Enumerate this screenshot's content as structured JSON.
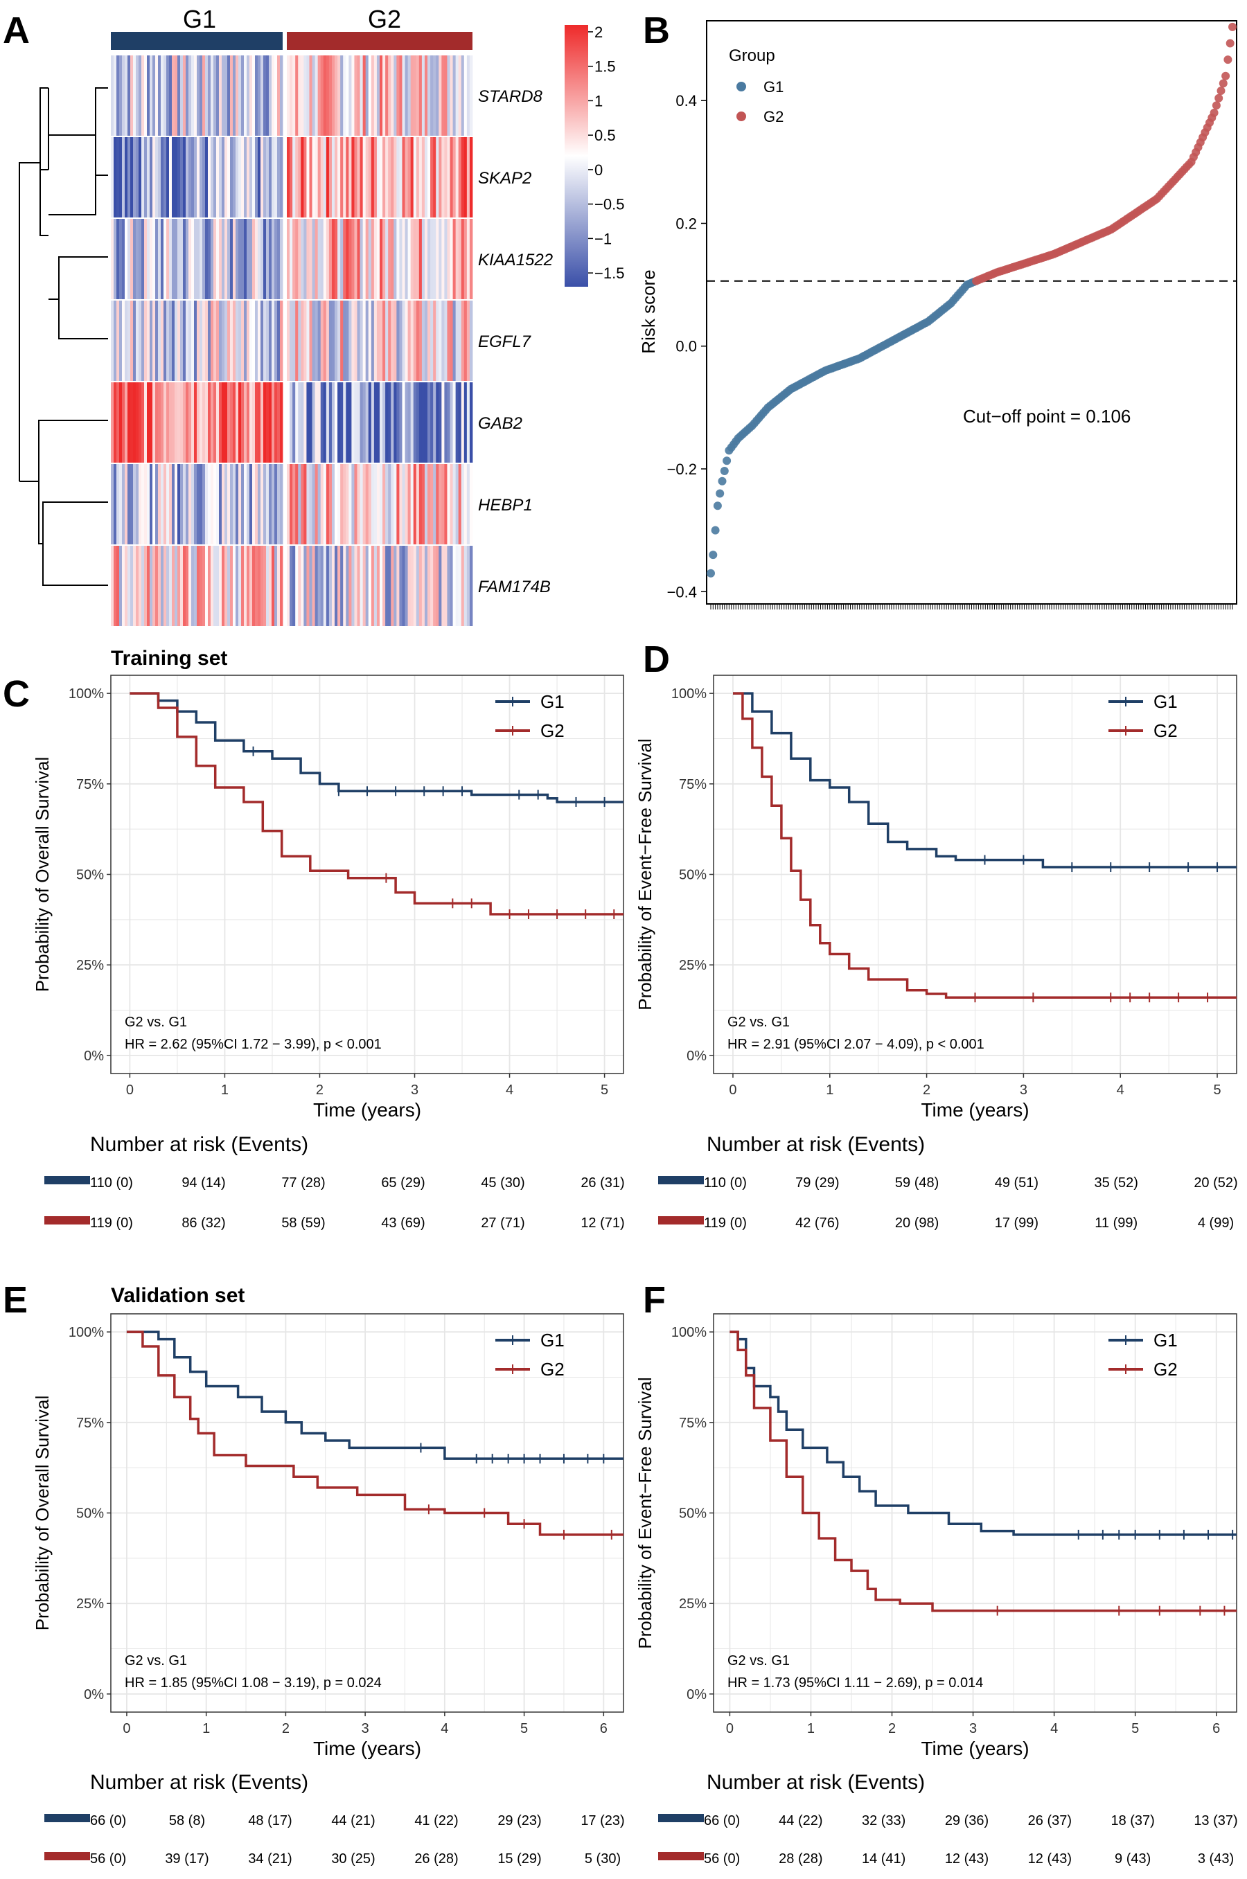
{
  "colors": {
    "g1": "#1f3f66",
    "g2": "#a32b2b",
    "g1_point": "#4a7aa0",
    "g2_point": "#c25555",
    "heat_low": "#3a4fa8",
    "heat_mid": "#ffffff",
    "heat_high": "#ee2a2a",
    "grid": "#e6e6e6"
  },
  "panel_letters": [
    "A",
    "B",
    "C",
    "D",
    "E",
    "F"
  ],
  "chart_data": [
    {
      "panel": "A",
      "type": "heatmap",
      "group_labels": [
        "G1",
        "G2"
      ],
      "genes": [
        "STARD8",
        "SKAP2",
        "KIAA1522",
        "EGFL7",
        "GAB2",
        "HEBP1",
        "FAM174B"
      ],
      "n_samples_g1": 110,
      "n_samples_g2": 119,
      "mean_expression_g1": [
        -0.3,
        -0.8,
        -0.5,
        -0.2,
        1.2,
        -0.5,
        0.3
      ],
      "mean_expression_g2": [
        0.3,
        0.8,
        0.5,
        0.1,
        -0.9,
        0.4,
        -0.2
      ],
      "colorbar": {
        "ticks": [
          2,
          1.5,
          1,
          0.5,
          0,
          -0.5,
          -1,
          -1.5
        ],
        "tick_labels": [
          "2",
          "1.5",
          "1",
          "0.5",
          "0",
          "−0.5",
          "−1",
          "−1.5"
        ],
        "range": [
          -1.7,
          2.1
        ]
      }
    },
    {
      "panel": "B",
      "type": "scatter",
      "legend_title": "Group",
      "legend": [
        "G1",
        "G2"
      ],
      "ylabel": "Risk score",
      "yticks": [
        0.4,
        0.2,
        0.0,
        -0.2,
        -0.4
      ],
      "ytick_labels": [
        "0.4",
        "0.2",
        "0.0",
        "−0.2",
        "−0.4"
      ],
      "ylim": [
        -0.42,
        0.53
      ],
      "cutoff": 0.106,
      "annotation": "Cut−off point = 0.106",
      "n_total": 229,
      "ranked_points": [
        [
          0,
          -0.37
        ],
        [
          1,
          -0.34
        ],
        [
          3,
          -0.26
        ],
        [
          5,
          -0.22
        ],
        [
          8,
          -0.17
        ],
        [
          12,
          -0.15
        ],
        [
          18,
          -0.13
        ],
        [
          25,
          -0.1
        ],
        [
          35,
          -0.07
        ],
        [
          50,
          -0.04
        ],
        [
          65,
          -0.02
        ],
        [
          80,
          0.01
        ],
        [
          95,
          0.04
        ],
        [
          105,
          0.07
        ],
        [
          112,
          0.1
        ],
        [
          125,
          0.12
        ],
        [
          150,
          0.15
        ],
        [
          175,
          0.19
        ],
        [
          195,
          0.24
        ],
        [
          210,
          0.3
        ],
        [
          220,
          0.38
        ],
        [
          225,
          0.44
        ],
        [
          228,
          0.52
        ]
      ]
    },
    {
      "panel": "C",
      "type": "line",
      "title": "Training set",
      "xlabel": "Time (years)",
      "ylabel": "Probability of Overall Survival",
      "xlim": [
        -0.2,
        5.2
      ],
      "xticks": [
        0,
        1,
        2,
        3,
        4,
        5
      ],
      "yticks": [
        "0%",
        "25%",
        "50%",
        "75%",
        "100%"
      ],
      "legend": [
        "G1",
        "G2"
      ],
      "annotation_1": "G2 vs. G1",
      "annotation_2": "HR = 2.62 (95%CI 1.72 − 3.99), p < 0.001",
      "series": [
        {
          "name": "G1",
          "points": [
            [
              0,
              1.0
            ],
            [
              0.3,
              0.98
            ],
            [
              0.5,
              0.95
            ],
            [
              0.7,
              0.92
            ],
            [
              0.9,
              0.87
            ],
            [
              1.2,
              0.84
            ],
            [
              1.5,
              0.82
            ],
            [
              1.8,
              0.78
            ],
            [
              2.0,
              0.75
            ],
            [
              2.2,
              0.73
            ],
            [
              3.0,
              0.73
            ],
            [
              3.6,
              0.72
            ],
            [
              4.4,
              0.71
            ],
            [
              4.5,
              0.7
            ],
            [
              5.2,
              0.7
            ]
          ],
          "censor_times": [
            1.3,
            2.2,
            2.5,
            2.8,
            3.1,
            3.3,
            3.5,
            4.1,
            4.3,
            4.7,
            5.0
          ]
        },
        {
          "name": "G2",
          "points": [
            [
              0,
              1.0
            ],
            [
              0.3,
              0.96
            ],
            [
              0.5,
              0.88
            ],
            [
              0.7,
              0.8
            ],
            [
              0.9,
              0.74
            ],
            [
              1.2,
              0.7
            ],
            [
              1.4,
              0.62
            ],
            [
              1.6,
              0.55
            ],
            [
              1.9,
              0.51
            ],
            [
              2.3,
              0.49
            ],
            [
              2.8,
              0.45
            ],
            [
              3.0,
              0.42
            ],
            [
              3.8,
              0.39
            ],
            [
              5.2,
              0.39
            ]
          ],
          "censor_times": [
            2.7,
            3.4,
            3.6,
            4.0,
            4.2,
            4.5,
            4.8,
            5.1
          ]
        }
      ],
      "risk_table": {
        "title": "Number at risk (Events)",
        "rows": [
          {
            "name": "G1",
            "values": [
              "110 (0)",
              "94 (14)",
              "77 (28)",
              "65 (29)",
              "45 (30)",
              "26 (31)"
            ]
          },
          {
            "name": "G2",
            "values": [
              "119 (0)",
              "86 (32)",
              "58 (59)",
              "43 (69)",
              "27 (71)",
              "12 (71)"
            ]
          }
        ]
      }
    },
    {
      "panel": "D",
      "type": "line",
      "xlabel": "Time (years)",
      "ylabel": "Probability of Event−Free Survival",
      "xlim": [
        -0.2,
        5.2
      ],
      "xticks": [
        0,
        1,
        2,
        3,
        4,
        5
      ],
      "yticks": [
        "0%",
        "25%",
        "50%",
        "75%",
        "100%"
      ],
      "legend": [
        "G1",
        "G2"
      ],
      "annotation_1": "G2 vs. G1",
      "annotation_2": "HR = 2.91 (95%CI 2.07 − 4.09), p < 0.001",
      "series": [
        {
          "name": "G1",
          "points": [
            [
              0,
              1.0
            ],
            [
              0.2,
              0.95
            ],
            [
              0.4,
              0.89
            ],
            [
              0.6,
              0.82
            ],
            [
              0.8,
              0.76
            ],
            [
              1.0,
              0.74
            ],
            [
              1.2,
              0.7
            ],
            [
              1.4,
              0.64
            ],
            [
              1.6,
              0.59
            ],
            [
              1.8,
              0.57
            ],
            [
              2.1,
              0.55
            ],
            [
              2.3,
              0.54
            ],
            [
              3.2,
              0.52
            ],
            [
              5.2,
              0.52
            ]
          ],
          "censor_times": [
            2.6,
            3.0,
            3.5,
            3.9,
            4.3,
            4.7,
            5.0
          ]
        },
        {
          "name": "G2",
          "points": [
            [
              0,
              1.0
            ],
            [
              0.1,
              0.93
            ],
            [
              0.2,
              0.85
            ],
            [
              0.3,
              0.77
            ],
            [
              0.4,
              0.69
            ],
            [
              0.5,
              0.6
            ],
            [
              0.6,
              0.51
            ],
            [
              0.7,
              0.43
            ],
            [
              0.8,
              0.36
            ],
            [
              0.9,
              0.31
            ],
            [
              1.0,
              0.28
            ],
            [
              1.2,
              0.24
            ],
            [
              1.4,
              0.21
            ],
            [
              1.8,
              0.18
            ],
            [
              2.0,
              0.17
            ],
            [
              2.2,
              0.16
            ],
            [
              5.2,
              0.16
            ]
          ],
          "censor_times": [
            2.5,
            3.1,
            3.9,
            4.1,
            4.3,
            4.6,
            4.9
          ]
        }
      ],
      "risk_table": {
        "title": "Number at risk (Events)",
        "rows": [
          {
            "name": "G1",
            "values": [
              "110 (0)",
              "79 (29)",
              "59 (48)",
              "49 (51)",
              "35 (52)",
              "20 (52)"
            ]
          },
          {
            "name": "G2",
            "values": [
              "119 (0)",
              "42 (76)",
              "20 (98)",
              "17 (99)",
              "11 (99)",
              "4 (99)"
            ]
          }
        ]
      }
    },
    {
      "panel": "E",
      "type": "line",
      "title": "Validation set",
      "xlabel": "Time (years)",
      "ylabel": "Probability of Overall Survival",
      "xlim": [
        -0.2,
        6.25
      ],
      "xticks": [
        0,
        1,
        2,
        3,
        4,
        5,
        6
      ],
      "yticks": [
        "0%",
        "25%",
        "50%",
        "75%",
        "100%"
      ],
      "legend": [
        "G1",
        "G2"
      ],
      "annotation_1": "G2 vs. G1",
      "annotation_2": "HR = 1.85 (95%CI 1.08 − 3.19), p = 0.024",
      "series": [
        {
          "name": "G1",
          "points": [
            [
              0,
              1.0
            ],
            [
              0.4,
              0.98
            ],
            [
              0.6,
              0.93
            ],
            [
              0.8,
              0.89
            ],
            [
              1.0,
              0.85
            ],
            [
              1.4,
              0.82
            ],
            [
              1.7,
              0.78
            ],
            [
              2.0,
              0.75
            ],
            [
              2.2,
              0.72
            ],
            [
              2.5,
              0.7
            ],
            [
              2.8,
              0.68
            ],
            [
              3.5,
              0.68
            ],
            [
              4.0,
              0.65
            ],
            [
              6.25,
              0.65
            ]
          ],
          "censor_times": [
            3.7,
            4.4,
            4.6,
            4.8,
            5.0,
            5.2,
            5.5,
            5.8,
            6.0
          ]
        },
        {
          "name": "G2",
          "points": [
            [
              0,
              1.0
            ],
            [
              0.2,
              0.96
            ],
            [
              0.4,
              0.88
            ],
            [
              0.6,
              0.82
            ],
            [
              0.8,
              0.76
            ],
            [
              0.9,
              0.72
            ],
            [
              1.1,
              0.66
            ],
            [
              1.5,
              0.63
            ],
            [
              2.1,
              0.6
            ],
            [
              2.4,
              0.57
            ],
            [
              2.9,
              0.55
            ],
            [
              3.5,
              0.51
            ],
            [
              4.0,
              0.5
            ],
            [
              4.8,
              0.47
            ],
            [
              5.2,
              0.44
            ],
            [
              6.25,
              0.44
            ]
          ],
          "censor_times": [
            3.8,
            4.5,
            5.0,
            5.5,
            6.1
          ]
        }
      ],
      "risk_table": {
        "title": "Number at risk (Events)",
        "rows": [
          {
            "name": "G1",
            "values": [
              "66 (0)",
              "58 (8)",
              "48 (17)",
              "44 (21)",
              "41 (22)",
              "29 (23)",
              "17 (23)"
            ]
          },
          {
            "name": "G2",
            "values": [
              "56 (0)",
              "39 (17)",
              "34 (21)",
              "30 (25)",
              "26 (28)",
              "15 (29)",
              "5 (30)"
            ]
          }
        ]
      }
    },
    {
      "panel": "F",
      "type": "line",
      "xlabel": "Time (years)",
      "ylabel": "Probability of Event−Free Survival",
      "xlim": [
        -0.2,
        6.25
      ],
      "xticks": [
        0,
        1,
        2,
        3,
        4,
        5,
        6
      ],
      "yticks": [
        "0%",
        "25%",
        "50%",
        "75%",
        "100%"
      ],
      "legend": [
        "G1",
        "G2"
      ],
      "annotation_1": "G2 vs. G1",
      "annotation_2": "HR = 1.73 (95%CI 1.11 − 2.69), p = 0.014",
      "series": [
        {
          "name": "G1",
          "points": [
            [
              0,
              1.0
            ],
            [
              0.1,
              0.98
            ],
            [
              0.2,
              0.9
            ],
            [
              0.3,
              0.85
            ],
            [
              0.5,
              0.82
            ],
            [
              0.6,
              0.78
            ],
            [
              0.7,
              0.73
            ],
            [
              0.9,
              0.68
            ],
            [
              1.2,
              0.64
            ],
            [
              1.4,
              0.6
            ],
            [
              1.6,
              0.56
            ],
            [
              1.8,
              0.52
            ],
            [
              2.2,
              0.5
            ],
            [
              2.7,
              0.47
            ],
            [
              3.1,
              0.45
            ],
            [
              3.5,
              0.44
            ],
            [
              6.25,
              0.44
            ]
          ],
          "censor_times": [
            4.3,
            4.6,
            4.8,
            5.0,
            5.3,
            5.6,
            5.9,
            6.2
          ]
        },
        {
          "name": "G2",
          "points": [
            [
              0,
              1.0
            ],
            [
              0.1,
              0.95
            ],
            [
              0.2,
              0.88
            ],
            [
              0.3,
              0.79
            ],
            [
              0.5,
              0.7
            ],
            [
              0.7,
              0.6
            ],
            [
              0.9,
              0.5
            ],
            [
              1.1,
              0.43
            ],
            [
              1.3,
              0.37
            ],
            [
              1.5,
              0.34
            ],
            [
              1.7,
              0.29
            ],
            [
              1.8,
              0.26
            ],
            [
              2.1,
              0.25
            ],
            [
              2.5,
              0.23
            ],
            [
              6.25,
              0.23
            ]
          ],
          "censor_times": [
            3.3,
            4.8,
            5.3,
            5.8,
            6.1
          ]
        }
      ],
      "risk_table": {
        "title": "Number at risk (Events)",
        "rows": [
          {
            "name": "G1",
            "values": [
              "66 (0)",
              "44 (22)",
              "32 (33)",
              "29 (36)",
              "26 (37)",
              "18 (37)",
              "13 (37)"
            ]
          },
          {
            "name": "G2",
            "values": [
              "56 (0)",
              "28 (28)",
              "14 (41)",
              "12 (43)",
              "12 (43)",
              "9 (43)",
              "3 (43)"
            ]
          }
        ]
      }
    }
  ]
}
